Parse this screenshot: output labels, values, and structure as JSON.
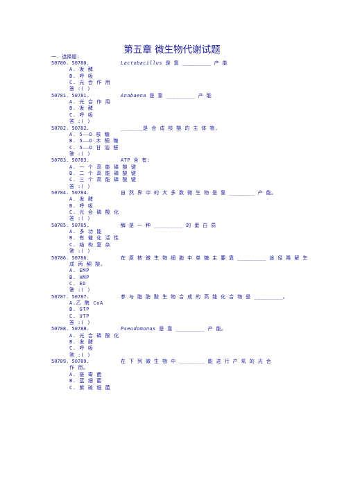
{
  "title": "第五章 微生物代谢试题",
  "section": "一. 选择题:",
  "questions": [
    {
      "num": "50780. 50780.",
      "text_italic": "Lactobacillus",
      "text_rest": " 是 靠 _________ 产 能",
      "options": [
        "A. 发 酵",
        "B. 呼 吸",
        "C. 光 合 作 用"
      ],
      "answer": "答 :(    )"
    },
    {
      "num": "50781. 50781.",
      "text_italic": "Anabaena",
      "text_rest": " 是 靠 _________ 产 能",
      "options": [
        "A. 光 合 作 用",
        "B. 发 酵",
        "C. 呼 吸"
      ],
      "answer": "答 :(    )"
    },
    {
      "num": "50782. 50782.",
      "text_italic": "",
      "text_rest": "_______是 合 成 核 酸 的 主 体 物,",
      "options": [
        "A. 5——D 核 糖",
        "B. 5——D 木 酮 糖",
        "C. 5——D 甘 油 醛"
      ],
      "answer": "答 :(    )"
    },
    {
      "num": "50783. 50783.",
      "text_italic": "",
      "text_rest": "ATP 含 有:",
      "options": [
        "A. 一 个 高 能 磷 酸 键",
        "B. 二 个 高 能 磷 酸 键",
        "C. 三 个 高 能 磷 酸 键"
      ],
      "answer": "答 :(    )"
    },
    {
      "num": "50784. 50784.",
      "text_italic": "",
      "text_rest": "自 然 界 中 的 大 多 数 微 生 物 是 靠 ________ 产 能。",
      "options": [
        "A. 发 酵",
        "B. 呼 吸",
        "C. 光 合 磷 酸 化"
      ],
      "answer": "答 :(    )"
    },
    {
      "num": "50785. 50785.",
      "text_italic": "",
      "text_rest": "酶 是 一 种 _________ 的 蛋 白 质",
      "options": [
        "A. 多 功 能",
        "B. 有 催 化 活 性",
        "C. 结 构 复 杂"
      ],
      "answer": "答 :(    )"
    },
    {
      "num": "50786. 50786.",
      "text_italic": "",
      "text_rest": "在 原 核 微 生 物 细 胞 中 单 糖 主 要 靠 _________ 途 径 降 解 生",
      "wrap": "成 丙 酮 酸。",
      "options": [
        " A. EMP",
        " B. HMP",
        " C. ED"
      ],
      "answer": "答 :(    )"
    },
    {
      "num": "50787. 50787.",
      "text_italic": "",
      "text_rest": "参 与 脂 肪 酸 生 物 合 成 的 高 能 化 合 物 是 _________。",
      "options": [
        " A.乙 酰 CoA",
        " B. GTP",
        " C. UTP"
      ],
      "answer": "答 :(    )"
    },
    {
      "num": "50788. 50788.",
      "text_italic": "Pseudomonas",
      "text_rest": " 是 靠 _________ 产 能。",
      "options": [
        "A. 光 合 磷 酸 化",
        "B. 发 酵",
        "C. 呼 吸"
      ],
      "answer": "答 :(    )"
    },
    {
      "num": "50789. 50789.",
      "text_italic": "",
      "text_rest": "在 下 列 微 生 物 中 ________ 能 进 行 产 氧 的 光 合",
      "wrap": "作 用。",
      "options": [
        "A.  链  霉  菌",
        "B.  蓝  细  菌",
        "C.  紫  硫  细  菌"
      ],
      "answer": ""
    }
  ]
}
